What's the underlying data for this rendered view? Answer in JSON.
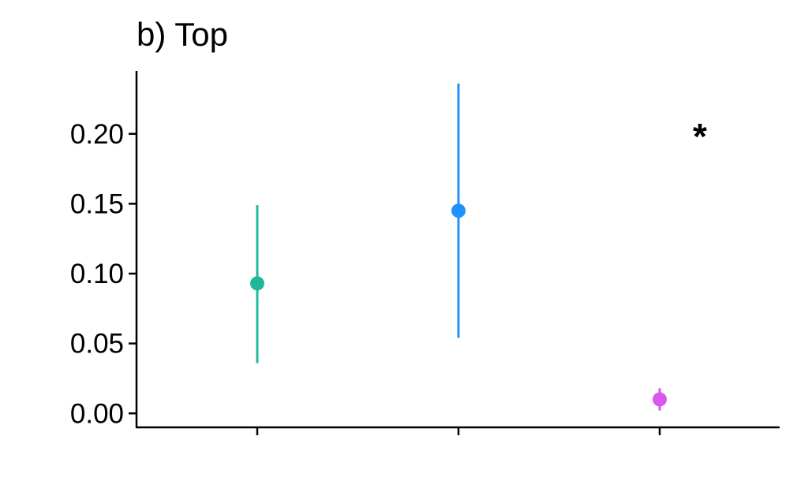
{
  "chart_data": {
    "type": "scatter",
    "title": "b) Top",
    "xlabel": "",
    "ylabel": "",
    "categories": [
      "",
      "",
      ""
    ],
    "ylim": [
      -0.01,
      0.245
    ],
    "yticks": [
      0.0,
      0.05,
      0.1,
      0.15,
      0.2
    ],
    "ytick_labels": [
      "0.00",
      "0.05",
      "0.10",
      "0.15",
      "0.20"
    ],
    "points": [
      {
        "category_index": 0,
        "y": 0.093,
        "lower": 0.036,
        "upper": 0.149,
        "color": "#1fb99a"
      },
      {
        "category_index": 1,
        "y": 0.145,
        "lower": 0.054,
        "upper": 0.236,
        "color": "#1e90ff"
      },
      {
        "category_index": 2,
        "y": 0.01,
        "lower": 0.002,
        "upper": 0.018,
        "color": "#d957ef"
      }
    ],
    "annotations": [
      {
        "text": "*",
        "category_position": 2.2,
        "y": 0.205
      }
    ],
    "grid": false,
    "legend": "none"
  }
}
